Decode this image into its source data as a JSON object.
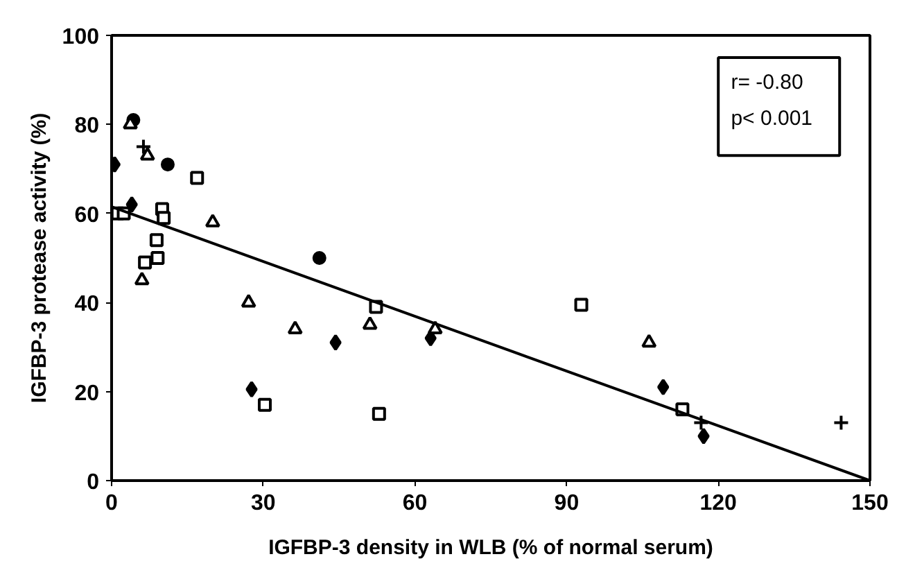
{
  "chart_data": {
    "type": "scatter",
    "xlabel": "IGFBP-3 density in WLB (% of normal serum)",
    "ylabel": "IGFBP-3 protease activity (%)",
    "xlim": [
      0,
      150
    ],
    "ylim": [
      0,
      100
    ],
    "xticks": [
      0,
      30,
      60,
      90,
      120,
      150
    ],
    "yticks": [
      0,
      20,
      40,
      60,
      80,
      100
    ],
    "annotations": [
      "r= -0.80",
      "p< 0.001"
    ],
    "series": [
      {
        "marker": "circle",
        "color": "#000000",
        "x": [
          4.3,
          11.1,
          41.1
        ],
        "values": [
          81,
          71,
          50
        ]
      },
      {
        "marker": "diamond",
        "color": "#000000",
        "x": [
          0.6,
          4,
          44.3,
          63.1,
          27.7,
          109.1,
          117.1
        ],
        "values": [
          71,
          62,
          31,
          32,
          20.5,
          21,
          10
        ]
      },
      {
        "marker": "cross",
        "color": "#000000",
        "x": [
          6.3,
          116.6,
          144.3
        ],
        "values": [
          75,
          13,
          13
        ]
      },
      {
        "marker": "square",
        "color": "#000000",
        "x": [
          1.2,
          2.4,
          16.9,
          10,
          10.3,
          8.9,
          9.1,
          6.6,
          52.3,
          30.3,
          52.9,
          92.9,
          112.9
        ],
        "values": [
          60,
          60,
          68,
          61,
          59,
          54,
          50,
          49,
          39,
          17,
          15,
          39.5,
          16
        ]
      },
      {
        "marker": "triangle",
        "color": "#000000",
        "x": [
          3.7,
          7.1,
          20,
          6,
          27.1,
          36.3,
          51.1,
          64,
          106.3
        ],
        "values": [
          80,
          73,
          58,
          45,
          40,
          34,
          35,
          34,
          31
        ]
      },
      {
        "type": "line",
        "color": "#000000",
        "line_style": "solid",
        "x": [
          0,
          150
        ],
        "values": [
          61.5,
          0
        ]
      }
    ]
  }
}
